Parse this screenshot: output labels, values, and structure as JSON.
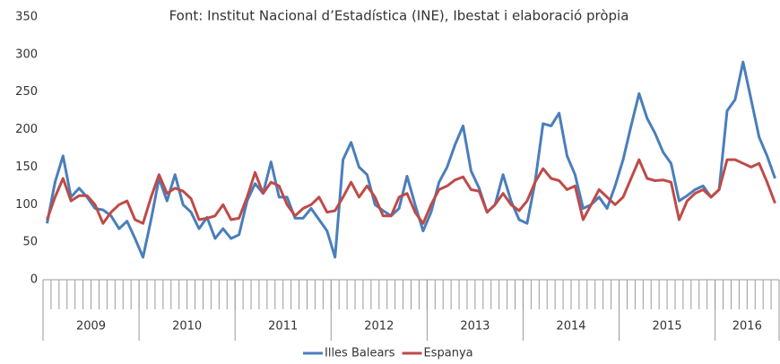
{
  "chart_data": {
    "type": "line",
    "title": "Font: Institut Nacional d’Estadística (INE), Ibestat i elaboració pròpia",
    "year_groups": [
      {
        "label": "2009",
        "count": 12
      },
      {
        "label": "2010",
        "count": 12
      },
      {
        "label": "2011",
        "count": 12
      },
      {
        "label": "2012",
        "count": 12
      },
      {
        "label": "2013",
        "count": 12
      },
      {
        "label": "2014",
        "count": 12
      },
      {
        "label": "2015",
        "count": 12
      },
      {
        "label": "2016",
        "count": 8
      }
    ],
    "series": [
      {
        "name": "Illes Balears",
        "color": "#4a7ebb",
        "values": [
          75,
          130,
          165,
          110,
          122,
          110,
          95,
          93,
          85,
          68,
          78,
          55,
          30,
          80,
          135,
          105,
          140,
          100,
          90,
          68,
          83,
          55,
          68,
          55,
          60,
          105,
          128,
          115,
          157,
          110,
          110,
          82,
          82,
          95,
          80,
          65,
          30,
          160,
          183,
          150,
          140,
          100,
          92,
          85,
          95,
          138,
          100,
          65,
          90,
          130,
          150,
          180,
          205,
          145,
          122,
          90,
          100,
          140,
          105,
          80,
          75,
          130,
          208,
          205,
          222,
          165,
          140,
          95,
          100,
          110,
          95,
          125,
          160,
          205,
          248,
          215,
          195,
          170,
          155,
          105,
          112,
          120,
          125,
          110,
          120,
          225,
          240,
          290,
          240,
          190,
          165,
          135
        ]
      },
      {
        "name": "Espanya",
        "color": "#be4b48",
        "values": [
          80,
          110,
          135,
          105,
          112,
          112,
          100,
          75,
          90,
          100,
          105,
          80,
          75,
          110,
          140,
          115,
          122,
          118,
          108,
          80,
          82,
          85,
          100,
          80,
          82,
          110,
          143,
          115,
          130,
          125,
          100,
          85,
          95,
          100,
          110,
          90,
          92,
          110,
          130,
          110,
          125,
          110,
          85,
          85,
          110,
          115,
          90,
          75,
          100,
          120,
          125,
          133,
          137,
          120,
          118,
          90,
          100,
          115,
          100,
          92,
          105,
          130,
          148,
          135,
          132,
          120,
          125,
          80,
          100,
          120,
          110,
          100,
          110,
          135,
          160,
          135,
          132,
          133,
          130,
          80,
          105,
          115,
          120,
          110,
          120,
          160,
          160,
          155,
          150,
          155,
          130,
          102
        ]
      }
    ],
    "ylim": [
      0,
      350
    ],
    "yticks": [
      0,
      50,
      100,
      150,
      200,
      250,
      300,
      350
    ],
    "grid": false,
    "legend": "bottom"
  }
}
